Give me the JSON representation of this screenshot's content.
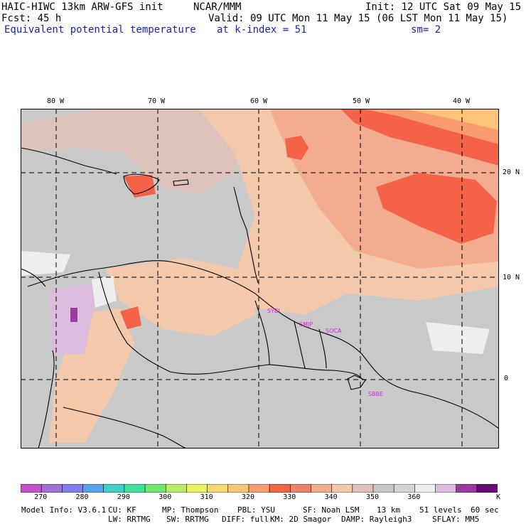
{
  "header": {
    "model_title": "HAIC-HIWC 13km ARW-GFS init",
    "org": "NCAR/MMM",
    "init": "Init: 12 UTC Sat 09 May 15",
    "fcst": "Fcst:  45 h",
    "valid": "Valid: 09 UTC Mon 11 May 15 (06 LST Mon 11 May 15)",
    "field": "Equivalent potential temperature",
    "level": "at k-index =  51",
    "smooth": "sm= 2"
  },
  "map": {
    "lon_labels": [
      "80 W",
      "70 W",
      "60 W",
      "50 W",
      "40 W"
    ],
    "lat_labels": [
      "20 N",
      "10 N",
      "0"
    ],
    "stations": [
      "SYBI",
      "SMJP",
      "SOCA",
      "SBBE"
    ],
    "domain": {
      "lon_min": -83,
      "lon_max": -36.5,
      "lat_min": -6.5,
      "lat_max": 26
    }
  },
  "colorbar": {
    "colors": [
      "#c650c8",
      "#9d72d0",
      "#8080ec",
      "#5aa0ec",
      "#40d0c4",
      "#40e09a",
      "#70e870",
      "#b8ec68",
      "#eaf060",
      "#f4d878",
      "#fcc478",
      "#f89c70",
      "#f46248",
      "#f0806c",
      "#f4ac90",
      "#f4c8aa",
      "#dcc2b8",
      "#c8c8c8",
      "#d4d4d4",
      "#eeeeee",
      "#dcbcdc",
      "#9a3aa0",
      "#6a0a76"
    ],
    "tick_labels": [
      "270",
      "280",
      "290",
      "300",
      "310",
      "320",
      "330",
      "340",
      "350",
      "360"
    ],
    "unit": "K"
  },
  "footer": {
    "line1": [
      "Model Info: V3.6.1",
      "CU: KF",
      "MP: Thompson",
      "PBL: YSU",
      "SF: Noah LSM",
      "13 km",
      "51 levels",
      "60 sec"
    ],
    "line2": [
      "LW: RRTMG",
      "SW: RRTMG",
      "DIFF: full",
      "KM: 2D Smagor",
      "DAMP: Rayleigh3",
      "SFLAY: MM5"
    ]
  }
}
